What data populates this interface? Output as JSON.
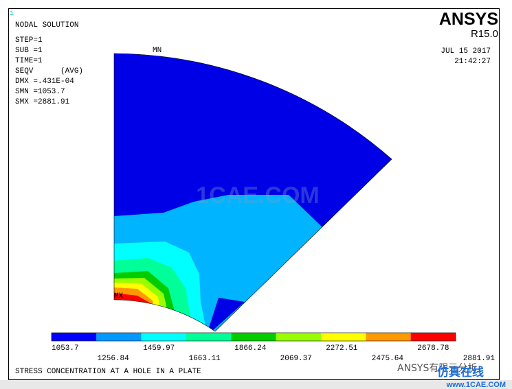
{
  "window_number": "1",
  "info": [
    "NODAL SOLUTION",
    "STEP=1",
    "SUB =1",
    "TIME=1",
    "SEQV      (AVG)",
    "DMX =.431E-04",
    "SMN =1053.7",
    "SMX =2881.91"
  ],
  "logo": {
    "title": "ANSYS",
    "release": "R15.0",
    "date": "JUL 15 2017",
    "time": "21:42:27"
  },
  "min_label": "MN",
  "max_label": "MX",
  "legend": [
    {
      "label": "1053.7",
      "color": "#0000ff"
    },
    {
      "label": "1256.84",
      "color": "#0099ff"
    },
    {
      "label": "1459.97",
      "color": "#00ffff"
    },
    {
      "label": "1663.11",
      "color": "#00ff99"
    },
    {
      "label": "1866.24",
      "color": "#00cc00"
    },
    {
      "label": "2069.37",
      "color": "#99ff00"
    },
    {
      "label": "2272.51",
      "color": "#ffff00"
    },
    {
      "label": "2475.64",
      "color": "#ff9900"
    },
    {
      "label": "2678.78",
      "color": "#ff0000"
    }
  ],
  "legend_max": "2881.91",
  "plot_title": "STRESS CONCENTRATION AT A HOLE IN A PLATE",
  "watermark": "1CAE.COM",
  "footer": {
    "brand": "ANSYS有限元分析",
    "site_name": "仿真在线",
    "url": "www.1CAE.COM"
  }
}
